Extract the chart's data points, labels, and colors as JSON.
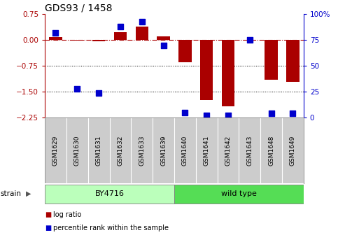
{
  "title": "GDS93 / 1458",
  "samples": [
    "GSM1629",
    "GSM1630",
    "GSM1631",
    "GSM1632",
    "GSM1633",
    "GSM1639",
    "GSM1640",
    "GSM1641",
    "GSM1642",
    "GSM1643",
    "GSM1648",
    "GSM1649"
  ],
  "log_ratio": [
    0.08,
    -0.02,
    -0.03,
    0.22,
    0.38,
    0.1,
    -0.65,
    -1.75,
    -1.92,
    -0.02,
    -1.15,
    -1.22
  ],
  "percentile_rank": [
    82,
    28,
    24,
    88,
    93,
    70,
    5,
    2,
    2,
    75,
    4,
    4
  ],
  "strain_groups": [
    {
      "label": "BY4716",
      "indices": [
        0,
        5
      ],
      "color": "#bbffbb"
    },
    {
      "label": "wild type",
      "indices": [
        6,
        11
      ],
      "color": "#55dd55"
    }
  ],
  "bar_color": "#aa0000",
  "dot_color": "#0000cc",
  "ylim_left": [
    -2.25,
    0.75
  ],
  "ylim_right": [
    0,
    100
  ],
  "yticks_left": [
    0.75,
    0,
    -0.75,
    -1.5,
    -2.25
  ],
  "yticks_right": [
    100,
    75,
    50,
    25,
    0
  ],
  "hline_y": 0,
  "dotted_lines": [
    -0.75,
    -1.5
  ],
  "bar_width": 0.6,
  "dot_size": 35,
  "bg_color": "#ffffff",
  "label_bg": "#cccccc",
  "legend_items": [
    {
      "label": "log ratio",
      "color": "#aa0000"
    },
    {
      "label": "percentile rank within the sample",
      "color": "#0000cc"
    }
  ]
}
